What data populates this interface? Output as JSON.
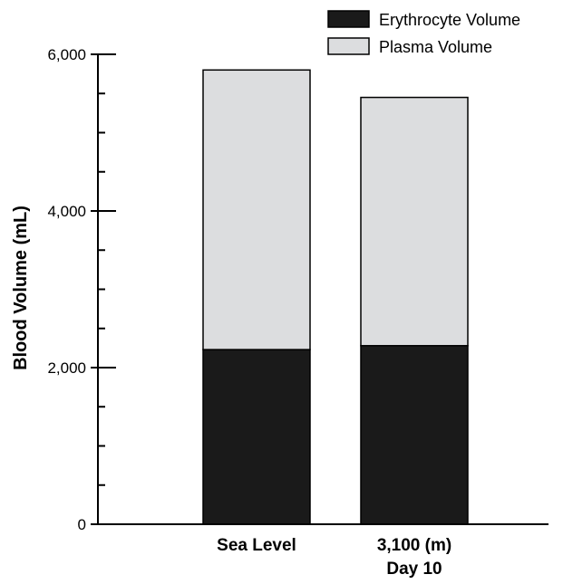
{
  "chart_data": {
    "type": "bar",
    "stacked": true,
    "categories": [
      "Sea Level",
      "3,100 (m)"
    ],
    "category_sublabels": [
      "",
      "Day 10"
    ],
    "series": [
      {
        "name": "Erythrocyte Volume",
        "color": "#1a1a1a",
        "values": [
          2230,
          2280
        ]
      },
      {
        "name": "Plasma Volume",
        "color": "#dcdddf",
        "values": [
          3570,
          3170
        ]
      }
    ],
    "ylabel": "Blood Volume (mL)",
    "xlabel": "",
    "ylim": [
      0,
      6000
    ],
    "y_tick_labels": [
      "0",
      "2,000",
      "4,000",
      "6,000"
    ],
    "y_minor_step": 500,
    "grid": false,
    "legend_position": "top-right"
  }
}
